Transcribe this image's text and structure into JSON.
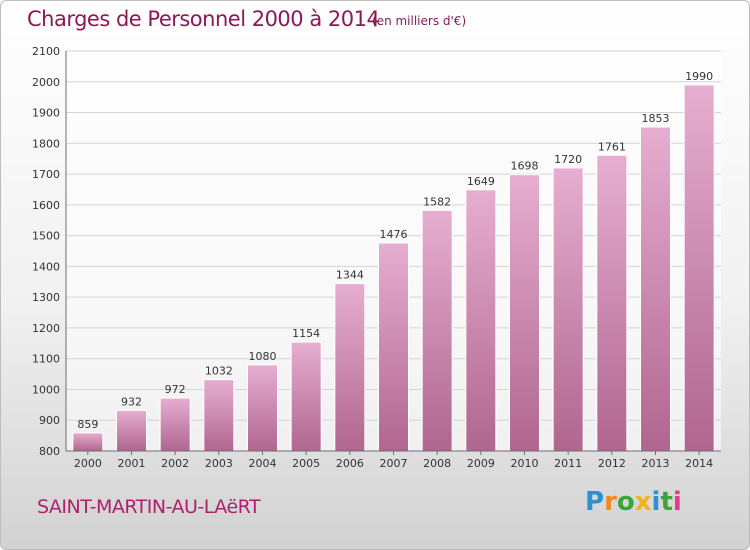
{
  "header": {
    "title": "Charges de Personnel 2000 à 2014",
    "subtitle": "(en milliers d'€)"
  },
  "footer": {
    "commune": "SAINT-MARTIN-AU-LAëRT",
    "brand": "Proxiti",
    "brand_letters": [
      {
        "char": "P",
        "color": "#2e8fd1"
      },
      {
        "char": "r",
        "color": "#f08a1e"
      },
      {
        "char": "o",
        "color": "#3aa63a"
      },
      {
        "char": "x",
        "color": "#f0b21e"
      },
      {
        "char": "i",
        "color": "#2e8fd1"
      },
      {
        "char": "t",
        "color": "#3aa63a"
      },
      {
        "char": "i",
        "color": "#e23a8f"
      }
    ]
  },
  "colors": {
    "bar_top": "#e6aed0",
    "bar_bottom": "#b0668f",
    "title": "#8a1a57",
    "commune": "#b01f6b",
    "grid": "#d4d4d4"
  },
  "chart_data": {
    "type": "bar",
    "categories": [
      "2000",
      "2001",
      "2002",
      "2003",
      "2004",
      "2005",
      "2006",
      "2007",
      "2008",
      "2009",
      "2010",
      "2011",
      "2012",
      "2013",
      "2014"
    ],
    "values": [
      859,
      932,
      972,
      1032,
      1080,
      1154,
      1344,
      1476,
      1582,
      1649,
      1698,
      1720,
      1761,
      1853,
      1990
    ],
    "title": "Charges de Personnel 2000 à 2014",
    "subtitle": "(en milliers d'€)",
    "xlabel": "",
    "ylabel": "",
    "ylim": [
      800,
      2100
    ],
    "yticks": [
      800,
      900,
      1000,
      1100,
      1200,
      1300,
      1400,
      1500,
      1600,
      1700,
      1800,
      1900,
      2000,
      2100
    ],
    "grid": true,
    "legend": "none",
    "data_labels": true
  }
}
